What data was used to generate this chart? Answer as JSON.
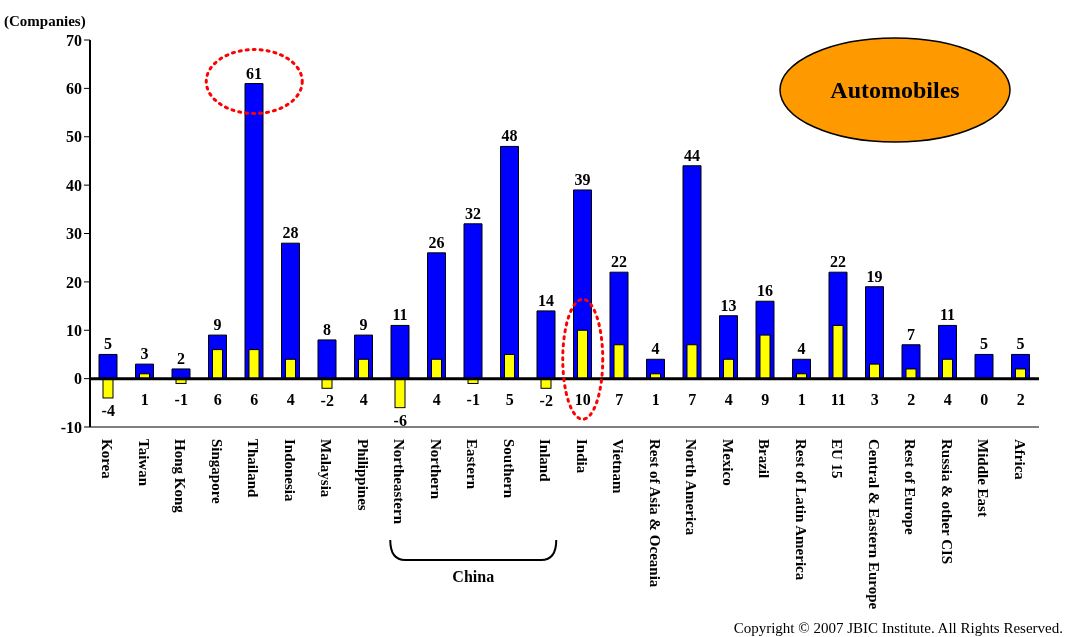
{
  "chart_data": {
    "type": "bar",
    "title": "Automobiles",
    "ylabel": "(Companies)",
    "categories": [
      "Korea",
      "Taiwan",
      "Hong Kong",
      "Singapore",
      "Thailand",
      "Indonesia",
      "Malaysia",
      "Philippines",
      "Northeastern",
      "Northern",
      "Eastern",
      "Southern",
      "Inland",
      "India",
      "Vietnam",
      "Rest of Asia & Oceania",
      "North America",
      "Mexico",
      "Brazil",
      "Rest of Latin America",
      "EU 15",
      "Central & Eastern Europe",
      "Rest of Europe",
      "Russia & other CIS",
      "Middle East",
      "Africa"
    ],
    "series": [
      {
        "color": "#0000ff",
        "values": [
          5,
          3,
          2,
          9,
          61,
          28,
          8,
          9,
          11,
          26,
          32,
          48,
          14,
          39,
          22,
          4,
          44,
          13,
          16,
          4,
          22,
          19,
          7,
          11,
          5,
          5
        ]
      },
      {
        "color": "#ffff00",
        "values": [
          -4,
          1,
          -1,
          6,
          6,
          4,
          -2,
          4,
          -6,
          4,
          -1,
          5,
          -2,
          10,
          7,
          1,
          7,
          4,
          9,
          1,
          11,
          3,
          2,
          4,
          0,
          2
        ]
      }
    ],
    "ylim": [
      -10,
      70
    ],
    "yticks": [
      -10,
      0,
      10,
      20,
      30,
      40,
      50,
      60,
      70
    ],
    "grid": false,
    "ref_lines": [
      {
        "axis": "y",
        "value": 0,
        "color": "#000000"
      }
    ],
    "legend": false,
    "data_labels": true,
    "annotations": [
      "China",
      "Copyright © 2007 JBIC Institute.  All Rights Reserved."
    ]
  }
}
